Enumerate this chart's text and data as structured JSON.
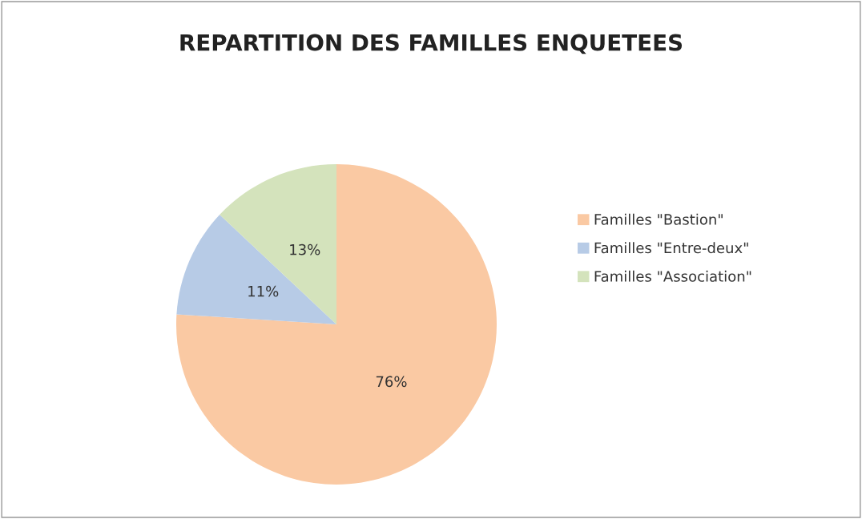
{
  "chart_data": {
    "type": "pie",
    "title": "REPARTITION DES FAMILLES ENQUETEES",
    "categories": [
      "Familles \"Bastion\"",
      "Familles \"Entre-deux\"",
      "Familles \"Association\""
    ],
    "values": [
      76,
      11,
      13
    ],
    "colors": [
      "#fac9a3",
      "#b7cbe6",
      "#d4e3bc"
    ],
    "value_labels": [
      "76%",
      "11%",
      "13%"
    ],
    "legend": "right"
  }
}
